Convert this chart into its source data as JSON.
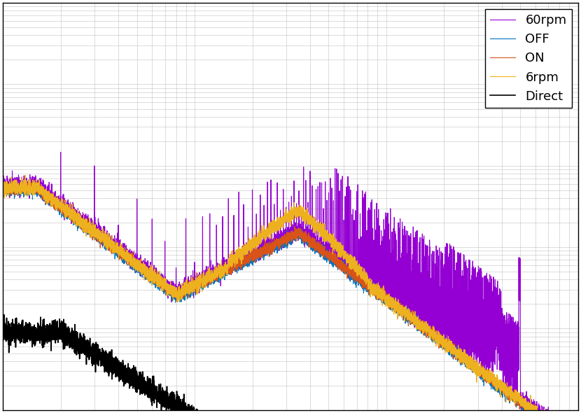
{
  "legend_labels": [
    "OFF",
    "ON",
    "6rpm",
    "60rpm",
    "Direct"
  ],
  "line_colors": [
    "#0072BD",
    "#D95319",
    "#EDB120",
    "#9400D3",
    "#000000"
  ],
  "line_widths": [
    0.8,
    0.8,
    0.8,
    0.8,
    1.2
  ],
  "xlim": [
    1,
    1000
  ],
  "background_color": "#ffffff",
  "grid_color": "#b0b0b0"
}
